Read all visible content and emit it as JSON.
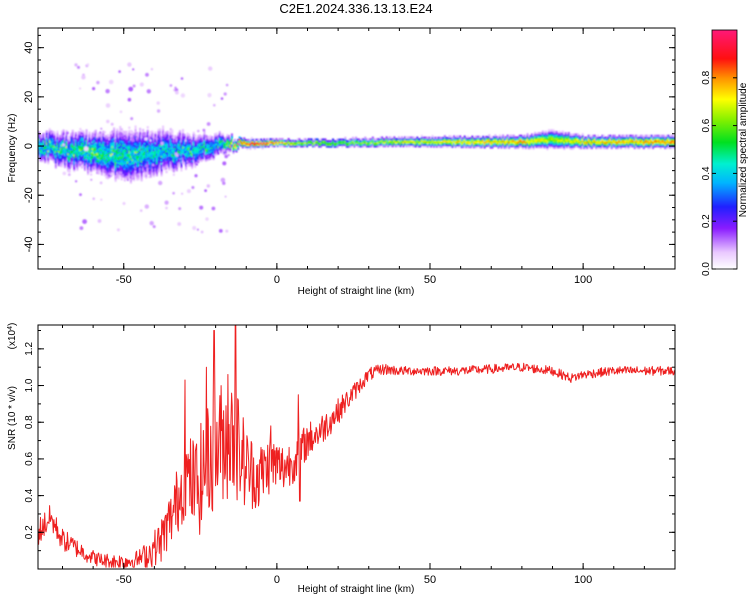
{
  "chart_data": [
    {
      "type": "heatmap",
      "title": "C2E1.2024.336.13.13.E24",
      "xlabel": "Height of straight line (km)",
      "ylabel": "Frequency (Hz)",
      "xlim": [
        -78,
        130
      ],
      "ylim": [
        -50,
        48
      ],
      "xticks": [
        -50,
        0,
        50,
        100
      ],
      "yticks": [
        -40,
        -20,
        0,
        20,
        40
      ],
      "colorbar": {
        "label": "Normalized spectral amplitude",
        "range": [
          0,
          1
        ],
        "ticks": [
          "0.0",
          "0.2",
          "0.4",
          "0.6",
          "0.8"
        ],
        "tick_values": [
          0,
          0.2,
          0.4,
          0.6,
          0.8
        ]
      },
      "band_center_hz": [
        [
          -78,
          0
        ],
        [
          -70,
          -2
        ],
        [
          -60,
          -3
        ],
        [
          -50,
          -4
        ],
        [
          -40,
          -3
        ],
        [
          -30,
          -2
        ],
        [
          -20,
          0
        ],
        [
          -12,
          1
        ],
        [
          0,
          1
        ],
        [
          20,
          1
        ],
        [
          40,
          1.5
        ],
        [
          60,
          1.5
        ],
        [
          80,
          1.5
        ],
        [
          90,
          2.5
        ],
        [
          100,
          1.5
        ],
        [
          130,
          1.5
        ]
      ],
      "band_halfwidth_hz": [
        [
          -78,
          5
        ],
        [
          -60,
          7
        ],
        [
          -50,
          9
        ],
        [
          -40,
          8
        ],
        [
          -30,
          6
        ],
        [
          -20,
          4
        ],
        [
          -12,
          1.5
        ],
        [
          0,
          1.2
        ],
        [
          40,
          1.5
        ],
        [
          80,
          2
        ],
        [
          90,
          3
        ],
        [
          100,
          2
        ],
        [
          130,
          2
        ]
      ],
      "peak_amplitude": [
        [
          -78,
          0.55
        ],
        [
          -60,
          0.6
        ],
        [
          -50,
          0.55
        ],
        [
          -40,
          0.5
        ],
        [
          -30,
          0.5
        ],
        [
          -20,
          0.5
        ],
        [
          -12,
          0.95
        ],
        [
          -5,
          1.0
        ],
        [
          5,
          0.75
        ],
        [
          20,
          0.65
        ],
        [
          40,
          0.75
        ],
        [
          60,
          0.8
        ],
        [
          80,
          0.85
        ],
        [
          90,
          0.7
        ],
        [
          100,
          0.8
        ],
        [
          130,
          0.9
        ]
      ]
    },
    {
      "type": "line",
      "ylabel": "SNR (10 * v/v)",
      "xlabel": "Height of straight line (km)",
      "scale_note": "(x10^4)",
      "xlim": [
        -78,
        130
      ],
      "ylim": [
        0,
        1.33
      ],
      "xticks": [
        -50,
        0,
        50,
        100
      ],
      "yticks": [
        0.2,
        0.4,
        0.6,
        0.8,
        1.0,
        1.2
      ],
      "line_color": "#ff2020",
      "series": [
        {
          "name": "SNR",
          "x": [
            -78,
            -74,
            -70,
            -66,
            -62,
            -58,
            -54,
            -50,
            -46,
            -42,
            -38,
            -34,
            -30,
            -26,
            -22,
            -18,
            -14,
            -10,
            -6,
            -2,
            2,
            6,
            10,
            14,
            18,
            22,
            26,
            30,
            35,
            40,
            50,
            60,
            70,
            80,
            90,
            96,
            100,
            110,
            120,
            130
          ],
          "values": [
            0.2,
            0.28,
            0.16,
            0.12,
            0.08,
            0.05,
            0.04,
            0.04,
            0.05,
            0.08,
            0.15,
            0.3,
            0.5,
            0.45,
            0.6,
            0.7,
            0.72,
            0.55,
            0.5,
            0.58,
            0.55,
            0.6,
            0.7,
            0.75,
            0.82,
            0.9,
            0.98,
            1.06,
            1.09,
            1.08,
            1.08,
            1.08,
            1.09,
            1.1,
            1.08,
            1.04,
            1.06,
            1.08,
            1.08,
            1.08
          ]
        }
      ],
      "noise_amplitude": [
        [
          -78,
          0.08
        ],
        [
          -60,
          0.04
        ],
        [
          -45,
          0.05
        ],
        [
          -35,
          0.15
        ],
        [
          -25,
          0.3
        ],
        [
          -15,
          0.35
        ],
        [
          -8,
          0.2
        ],
        [
          0,
          0.15
        ],
        [
          10,
          0.1
        ],
        [
          20,
          0.07
        ],
        [
          28,
          0.04
        ],
        [
          40,
          0.025
        ],
        [
          130,
          0.025
        ]
      ],
      "peaks": [
        {
          "x": -30,
          "value": 1.03
        },
        {
          "x": -20.5,
          "value": 1.3
        },
        {
          "x": -13.5,
          "value": 1.33
        },
        {
          "x": -16,
          "value": 1.06
        },
        {
          "x": -23,
          "value": 1.1
        },
        {
          "x": -2,
          "value": 0.78
        },
        {
          "x": 7,
          "value": 0.95
        },
        {
          "x": 7.5,
          "value": 0.37
        }
      ]
    }
  ]
}
